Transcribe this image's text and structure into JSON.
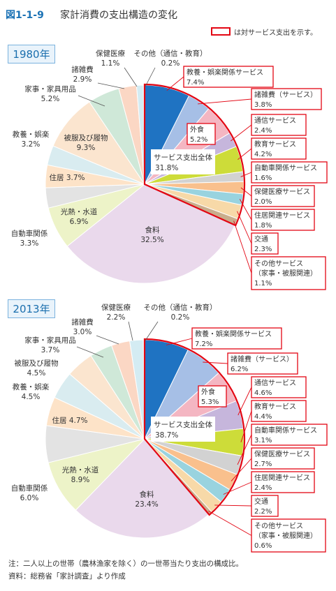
{
  "figure": {
    "number": "図1-1-9",
    "title": "家計消費の支出構造の変化",
    "legend_note": "は対サービス支出を示す。"
  },
  "notes": [
    "注：二人以上の世帯（農林漁家を除く）の一世帯当たり支出の構成比。",
    "資料：総務省「家計調査」より作成"
  ],
  "colors": {
    "accent": "#1b72b5",
    "service_frame": "#e30613"
  },
  "chart_data": [
    {
      "type": "pie",
      "year_label": "1980年",
      "total_service_label": "サービス支出全体",
      "total_service_value": "31.8%",
      "slices": [
        {
          "name": "教養・娯楽関係サービス",
          "value": 7.4,
          "display": "7.4%",
          "service": true,
          "color": "#1f73c2"
        },
        {
          "name": "諸雑費（サービス）",
          "value": 3.8,
          "display": "3.8%",
          "service": true,
          "color": "#a6bfe6"
        },
        {
          "name": "外食",
          "value": 5.2,
          "display": "5.2%",
          "service": true,
          "color": "#f4b6c2"
        },
        {
          "name": "通信サービス",
          "value": 2.4,
          "display": "2.4%",
          "service": true,
          "color": "#c6b6dc"
        },
        {
          "name": "教育サービス",
          "value": 4.2,
          "display": "4.2%",
          "service": true,
          "color": "#cddc39"
        },
        {
          "name": "自動車関係サービス",
          "value": 1.6,
          "display": "1.6%",
          "service": true,
          "color": "#d2d2d2"
        },
        {
          "name": "保健医療サービス",
          "value": 2.0,
          "display": "2.0%",
          "service": true,
          "color": "#f9c08d"
        },
        {
          "name": "住居関連サービス",
          "value": 1.8,
          "display": "1.8%",
          "service": true,
          "color": "#99d3df"
        },
        {
          "name": "交通",
          "value": 2.3,
          "display": "2.3%",
          "service": true,
          "color": "#f7d9a8"
        },
        {
          "name": "その他サービス（家事・被服関連）",
          "value": 1.1,
          "display": "1.1%",
          "service": true,
          "color": "#c9ad8c"
        },
        {
          "name": "食料",
          "value": 32.5,
          "display": "32.5%",
          "service": false,
          "color": "#ead9ec"
        },
        {
          "name": "光熱・水道",
          "value": 6.9,
          "display": "6.9%",
          "service": false,
          "color": "#edf3c8"
        },
        {
          "name": "自動車関係",
          "value": 3.3,
          "display": "3.3%",
          "service": false,
          "color": "#e3e3e3"
        },
        {
          "name": "住居",
          "value": 3.7,
          "display": "3.7%",
          "service": false,
          "color": "#fde3c8"
        },
        {
          "name": "教養・娯楽",
          "value": 3.2,
          "display": "3.2%",
          "service": false,
          "color": "#d9ecf0"
        },
        {
          "name": "被服及び履物",
          "value": 9.3,
          "display": "9.3%",
          "service": false,
          "color": "#fbe5cf"
        },
        {
          "name": "家事・家具用品",
          "value": 5.2,
          "display": "5.2%",
          "service": false,
          "color": "#cfe8d8"
        },
        {
          "name": "諸雑費",
          "value": 2.9,
          "display": "2.9%",
          "service": false,
          "color": "#fbd7c4"
        },
        {
          "name": "保健医療",
          "value": 1.1,
          "display": "1.1%",
          "service": false,
          "color": "#d4ecf3"
        },
        {
          "name": "その他（通信・教育）",
          "value": 0.2,
          "display": "0.2%",
          "service": false,
          "color": "#e8e8e8"
        }
      ]
    },
    {
      "type": "pie",
      "year_label": "2013年",
      "total_service_label": "サービス支出全体",
      "total_service_value": "38.7%",
      "slices": [
        {
          "name": "教養・娯楽関係サービス",
          "value": 7.2,
          "display": "7.2%",
          "service": true,
          "color": "#1f73c2"
        },
        {
          "name": "諸雑費（サービス）",
          "value": 6.2,
          "display": "6.2%",
          "service": true,
          "color": "#a6bfe6"
        },
        {
          "name": "外食",
          "value": 5.3,
          "display": "5.3%",
          "service": true,
          "color": "#f4b6c2"
        },
        {
          "name": "通信サービス",
          "value": 4.6,
          "display": "4.6%",
          "service": true,
          "color": "#c6b6dc"
        },
        {
          "name": "教育サービス",
          "value": 4.4,
          "display": "4.4%",
          "service": true,
          "color": "#cddc39"
        },
        {
          "name": "自動車関係サービス",
          "value": 3.1,
          "display": "3.1%",
          "service": true,
          "color": "#d2d2d2"
        },
        {
          "name": "保健医療サービス",
          "value": 2.7,
          "display": "2.7%",
          "service": true,
          "color": "#f9c08d"
        },
        {
          "name": "住居関連サービス",
          "value": 2.4,
          "display": "2.4%",
          "service": true,
          "color": "#99d3df"
        },
        {
          "name": "交通",
          "value": 2.2,
          "display": "2.2%",
          "service": true,
          "color": "#f7d9a8"
        },
        {
          "name": "その他サービス（家事・被服関連）",
          "value": 0.6,
          "display": "0.6%",
          "service": true,
          "color": "#c9ad8c"
        },
        {
          "name": "食料",
          "value": 23.4,
          "display": "23.4%",
          "service": false,
          "color": "#ead9ec"
        },
        {
          "name": "光熱・水道",
          "value": 8.9,
          "display": "8.9%",
          "service": false,
          "color": "#edf3c8"
        },
        {
          "name": "自動車関係",
          "value": 6.0,
          "display": "6.0%",
          "service": false,
          "color": "#e3e3e3"
        },
        {
          "name": "住居",
          "value": 4.7,
          "display": "4.7%",
          "service": false,
          "color": "#fde3c8"
        },
        {
          "name": "教養・娯楽",
          "value": 4.5,
          "display": "4.5%",
          "service": false,
          "color": "#d9ecf0"
        },
        {
          "name": "被服及び履物",
          "value": 4.5,
          "display": "4.5%",
          "service": false,
          "color": "#fbe5cf"
        },
        {
          "name": "家事・家具用品",
          "value": 3.7,
          "display": "3.7%",
          "service": false,
          "color": "#cfe8d8"
        },
        {
          "name": "諸雑費",
          "value": 3.0,
          "display": "3.0%",
          "service": false,
          "color": "#fbd7c4"
        },
        {
          "name": "保健医療",
          "value": 2.2,
          "display": "2.2%",
          "service": false,
          "color": "#d4ecf3"
        },
        {
          "name": "その他（通信・教育）",
          "value": 0.2,
          "display": "0.2%",
          "service": false,
          "color": "#e8e8e8"
        }
      ]
    }
  ]
}
